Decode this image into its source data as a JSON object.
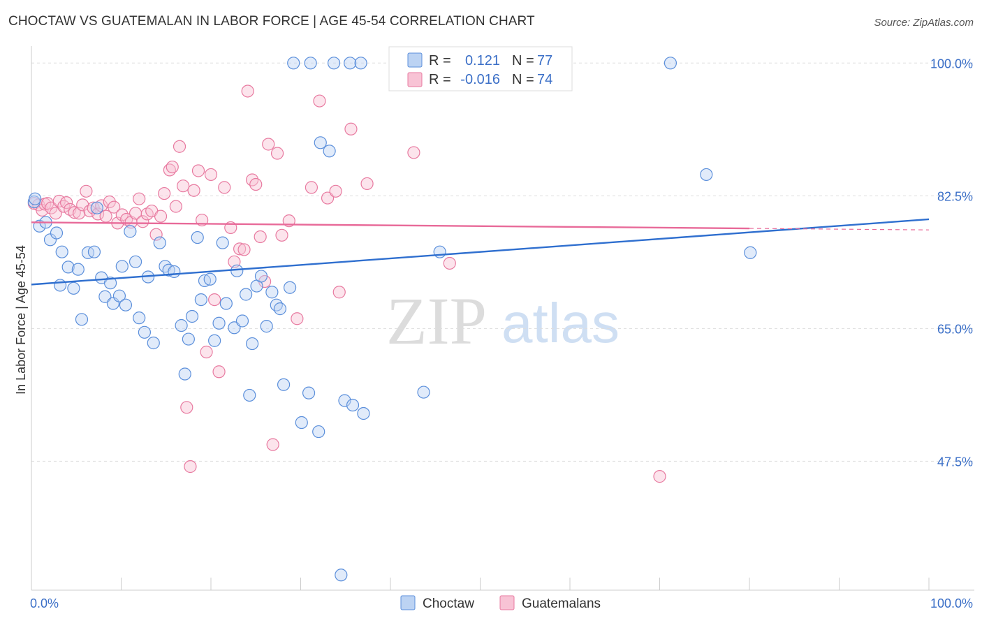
{
  "title": "CHOCTAW VS GUATEMALAN IN LABOR FORCE | AGE 45-54 CORRELATION CHART",
  "source": "Source: ZipAtlas.com",
  "colors": {
    "choctaw": "#5b8fdb",
    "choctaw_fill": "#bcd3f3",
    "guatemalan": "#e87aa0",
    "guatemalan_fill": "#f8c3d5",
    "trend_choctaw": "#2f6fcf",
    "trend_guatemalan": "#e86a99",
    "tick_text": "#3b6fc7"
  },
  "legend": {
    "r_label": "R =",
    "n_label": "N =",
    "rows": [
      {
        "series": "Choctaw",
        "r": "0.121",
        "n": "77"
      },
      {
        "series": "Guatemalans",
        "r": "-0.016",
        "n": "74"
      }
    ]
  },
  "watermark": {
    "part1": "ZIP",
    "part2": "atlas"
  },
  "chart_data": {
    "type": "scatter",
    "title": "CHOCTAW VS GUATEMALAN IN LABOR FORCE | AGE 45-54 CORRELATION CHART",
    "xlabel": "",
    "ylabel": "In Labor Force | Age 45-54",
    "xlim": [
      0,
      100
    ],
    "ylim": [
      30.5,
      101.5
    ],
    "x_tick_labels": [
      "0.0%",
      "100.0%"
    ],
    "y_ticks": [
      47.5,
      65.0,
      82.5,
      100.0
    ],
    "y_tick_labels": [
      "47.5%",
      "65.0%",
      "82.5%",
      "100.0%"
    ],
    "grid": "horizontal dashed",
    "legend_position": "top-center",
    "series": [
      {
        "name": "Choctaw",
        "trend": {
          "x": [
            0,
            100
          ],
          "y": [
            70.8,
            79.4
          ]
        },
        "points": [
          [
            0.3,
            81.7
          ],
          [
            0.9,
            78.5
          ],
          [
            1.6,
            79.0
          ],
          [
            2.1,
            76.7
          ],
          [
            2.8,
            77.6
          ],
          [
            3.4,
            75.1
          ],
          [
            4.1,
            73.1
          ],
          [
            3.2,
            70.7
          ],
          [
            4.7,
            70.3
          ],
          [
            5.2,
            72.8
          ],
          [
            5.6,
            66.2
          ],
          [
            6.3,
            75.0
          ],
          [
            7.0,
            75.1
          ],
          [
            7.3,
            80.9
          ],
          [
            7.8,
            71.7
          ],
          [
            8.2,
            69.2
          ],
          [
            8.8,
            71.0
          ],
          [
            9.1,
            68.3
          ],
          [
            9.8,
            69.3
          ],
          [
            10.1,
            73.2
          ],
          [
            10.5,
            68.1
          ],
          [
            11.0,
            77.8
          ],
          [
            11.6,
            73.8
          ],
          [
            12.0,
            66.4
          ],
          [
            12.6,
            64.5
          ],
          [
            13.0,
            71.8
          ],
          [
            13.6,
            63.1
          ],
          [
            14.3,
            76.3
          ],
          [
            14.9,
            73.2
          ],
          [
            15.3,
            72.7
          ],
          [
            15.9,
            72.5
          ],
          [
            16.7,
            65.4
          ],
          [
            17.1,
            59.0
          ],
          [
            17.5,
            63.6
          ],
          [
            17.9,
            66.6
          ],
          [
            18.5,
            77.0
          ],
          [
            18.9,
            68.8
          ],
          [
            19.3,
            71.3
          ],
          [
            19.9,
            71.5
          ],
          [
            20.4,
            63.4
          ],
          [
            20.9,
            65.7
          ],
          [
            21.3,
            76.3
          ],
          [
            21.7,
            68.3
          ],
          [
            22.6,
            65.1
          ],
          [
            22.9,
            72.6
          ],
          [
            23.5,
            66.0
          ],
          [
            23.9,
            69.5
          ],
          [
            24.3,
            56.2
          ],
          [
            24.6,
            63.0
          ],
          [
            25.1,
            70.6
          ],
          [
            25.6,
            71.9
          ],
          [
            26.2,
            65.3
          ],
          [
            26.8,
            69.8
          ],
          [
            27.3,
            68.1
          ],
          [
            27.7,
            67.6
          ],
          [
            28.1,
            57.6
          ],
          [
            28.8,
            70.4
          ],
          [
            29.2,
            100.0
          ],
          [
            30.1,
            52.6
          ],
          [
            30.9,
            56.5
          ],
          [
            31.1,
            100.0
          ],
          [
            32.0,
            51.4
          ],
          [
            32.2,
            89.5
          ],
          [
            33.2,
            88.4
          ],
          [
            33.7,
            100.0
          ],
          [
            34.5,
            32.5
          ],
          [
            34.9,
            55.5
          ],
          [
            35.5,
            100.0
          ],
          [
            35.8,
            54.9
          ],
          [
            36.7,
            100.0
          ],
          [
            37.0,
            53.8
          ],
          [
            43.7,
            56.6
          ],
          [
            45.5,
            75.1
          ],
          [
            71.2,
            100.0
          ],
          [
            75.2,
            85.3
          ],
          [
            80.1,
            75.0
          ],
          [
            0.4,
            82.1
          ]
        ]
      },
      {
        "name": "Guatemalans",
        "trend": {
          "x": [
            0,
            80
          ],
          "y": [
            79.0,
            78.2
          ]
        },
        "points": [
          [
            0.3,
            81.5
          ],
          [
            0.8,
            81.3
          ],
          [
            1.2,
            80.6
          ],
          [
            1.5,
            81.4
          ],
          [
            1.8,
            81.5
          ],
          [
            2.2,
            80.9
          ],
          [
            2.7,
            80.2
          ],
          [
            3.1,
            81.8
          ],
          [
            3.6,
            81.1
          ],
          [
            3.9,
            81.6
          ],
          [
            4.3,
            80.7
          ],
          [
            4.8,
            80.3
          ],
          [
            5.3,
            80.2
          ],
          [
            5.7,
            81.3
          ],
          [
            6.1,
            83.1
          ],
          [
            6.5,
            80.5
          ],
          [
            6.9,
            80.9
          ],
          [
            7.4,
            80.1
          ],
          [
            7.8,
            81.2
          ],
          [
            8.3,
            79.8
          ],
          [
            8.7,
            81.7
          ],
          [
            9.2,
            81.0
          ],
          [
            9.6,
            78.9
          ],
          [
            10.1,
            80.0
          ],
          [
            10.6,
            79.4
          ],
          [
            11.1,
            79.0
          ],
          [
            11.6,
            80.2
          ],
          [
            12.0,
            82.1
          ],
          [
            12.4,
            79.1
          ],
          [
            12.9,
            80.1
          ],
          [
            13.4,
            80.5
          ],
          [
            13.9,
            77.4
          ],
          [
            14.4,
            79.8
          ],
          [
            14.8,
            82.8
          ],
          [
            15.4,
            85.9
          ],
          [
            15.7,
            86.3
          ],
          [
            16.1,
            81.1
          ],
          [
            16.5,
            89.0
          ],
          [
            16.9,
            83.8
          ],
          [
            17.3,
            54.6
          ],
          [
            17.7,
            46.8
          ],
          [
            18.1,
            83.2
          ],
          [
            18.6,
            85.8
          ],
          [
            19.0,
            79.3
          ],
          [
            19.5,
            61.9
          ],
          [
            20.0,
            85.3
          ],
          [
            20.4,
            68.8
          ],
          [
            20.9,
            59.3
          ],
          [
            21.5,
            83.6
          ],
          [
            22.2,
            78.3
          ],
          [
            22.6,
            73.8
          ],
          [
            23.2,
            75.5
          ],
          [
            23.7,
            75.4
          ],
          [
            24.1,
            96.3
          ],
          [
            24.6,
            84.6
          ],
          [
            25.0,
            84.0
          ],
          [
            25.5,
            77.1
          ],
          [
            26.0,
            71.2
          ],
          [
            26.4,
            89.3
          ],
          [
            26.9,
            49.7
          ],
          [
            27.4,
            88.1
          ],
          [
            27.9,
            77.3
          ],
          [
            28.7,
            79.2
          ],
          [
            29.6,
            66.3
          ],
          [
            31.2,
            83.6
          ],
          [
            32.1,
            95.0
          ],
          [
            33.0,
            82.2
          ],
          [
            33.9,
            83.1
          ],
          [
            34.3,
            69.8
          ],
          [
            35.6,
            91.3
          ],
          [
            37.4,
            84.1
          ],
          [
            42.6,
            88.2
          ],
          [
            46.6,
            73.6
          ],
          [
            70.0,
            45.5
          ]
        ]
      }
    ]
  },
  "bottom_legend": [
    "Choctaw",
    "Guatemalans"
  ]
}
